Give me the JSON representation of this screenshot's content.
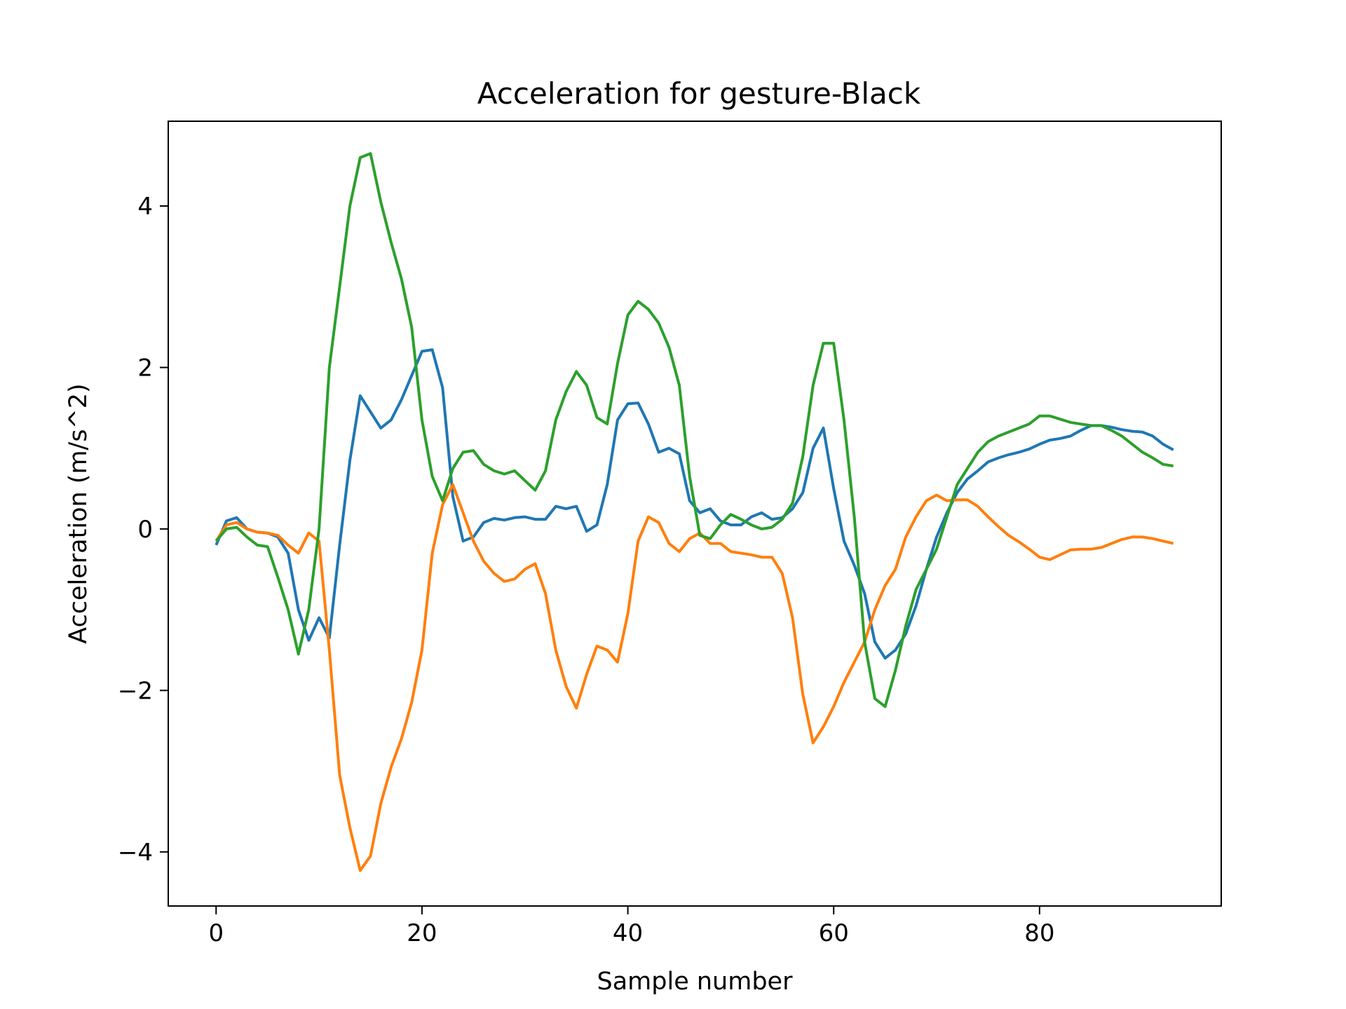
{
  "chart_data": {
    "type": "line",
    "title": "Acceleration for gesture-Black",
    "xlabel": "Sample number",
    "ylabel": "Acceleration (m/s^2)",
    "xlim": [
      -4.65,
      97.65
    ],
    "ylim": [
      -4.67,
      5.05
    ],
    "xticks": [
      0,
      20,
      40,
      60,
      80
    ],
    "xtick_labels": [
      "0",
      "20",
      "40",
      "60",
      "80"
    ],
    "yticks": [
      -4,
      -2,
      0,
      2,
      4
    ],
    "ytick_labels": [
      "−4",
      "−2",
      "0",
      "2",
      "4"
    ],
    "grid": false,
    "legend": "none",
    "x": [
      0,
      1,
      2,
      3,
      4,
      5,
      6,
      7,
      8,
      9,
      10,
      11,
      12,
      13,
      14,
      15,
      16,
      17,
      18,
      19,
      20,
      21,
      22,
      23,
      24,
      25,
      26,
      27,
      28,
      29,
      30,
      31,
      32,
      33,
      34,
      35,
      36,
      37,
      38,
      39,
      40,
      41,
      42,
      43,
      44,
      45,
      46,
      47,
      48,
      49,
      50,
      51,
      52,
      53,
      54,
      55,
      56,
      57,
      58,
      59,
      60,
      61,
      62,
      63,
      64,
      65,
      66,
      67,
      68,
      69,
      70,
      71,
      72,
      73,
      74,
      75,
      76,
      77,
      78,
      79,
      80,
      81,
      82,
      83,
      84,
      85,
      86,
      87,
      88,
      89,
      90,
      91,
      92,
      93
    ],
    "series": [
      {
        "color": "#1f77b4",
        "values": [
          -0.2,
          0.1,
          0.14,
          0.0,
          -0.04,
          -0.05,
          -0.1,
          -0.3,
          -1.0,
          -1.38,
          -1.1,
          -1.35,
          -0.2,
          0.85,
          1.65,
          1.45,
          1.25,
          1.35,
          1.6,
          1.9,
          2.2,
          2.22,
          1.75,
          0.4,
          -0.15,
          -0.1,
          0.08,
          0.13,
          0.11,
          0.14,
          0.15,
          0.12,
          0.12,
          0.28,
          0.25,
          0.28,
          -0.03,
          0.05,
          0.55,
          1.35,
          1.55,
          1.56,
          1.3,
          0.95,
          1.0,
          0.93,
          0.35,
          0.2,
          0.25,
          0.1,
          0.05,
          0.05,
          0.15,
          0.2,
          0.12,
          0.14,
          0.25,
          0.45,
          1.0,
          1.25,
          0.5,
          -0.15,
          -0.45,
          -0.8,
          -1.4,
          -1.6,
          -1.5,
          -1.3,
          -0.95,
          -0.5,
          -0.1,
          0.2,
          0.45,
          0.62,
          0.72,
          0.83,
          0.88,
          0.92,
          0.95,
          0.99,
          1.05,
          1.1,
          1.12,
          1.15,
          1.22,
          1.28,
          1.28,
          1.26,
          1.23,
          1.21,
          1.2,
          1.15,
          1.05,
          0.98
        ]
      },
      {
        "color": "#ff7f0e",
        "values": [
          -0.15,
          0.05,
          0.08,
          0.0,
          -0.04,
          -0.05,
          -0.08,
          -0.2,
          -0.3,
          -0.05,
          -0.15,
          -1.5,
          -3.05,
          -3.7,
          -4.23,
          -4.05,
          -3.4,
          -2.95,
          -2.6,
          -2.15,
          -1.5,
          -0.3,
          0.3,
          0.55,
          0.2,
          -0.15,
          -0.4,
          -0.55,
          -0.65,
          -0.62,
          -0.5,
          -0.43,
          -0.8,
          -1.5,
          -1.95,
          -2.22,
          -1.8,
          -1.45,
          -1.5,
          -1.65,
          -1.05,
          -0.15,
          0.15,
          0.08,
          -0.18,
          -0.28,
          -0.12,
          -0.05,
          -0.18,
          -0.18,
          -0.28,
          -0.3,
          -0.32,
          -0.35,
          -0.35,
          -0.55,
          -1.1,
          -2.05,
          -2.65,
          -2.45,
          -2.2,
          -1.9,
          -1.65,
          -1.4,
          -1.0,
          -0.7,
          -0.5,
          -0.1,
          0.15,
          0.35,
          0.42,
          0.35,
          0.36,
          0.36,
          0.28,
          0.15,
          0.03,
          -0.08,
          -0.16,
          -0.25,
          -0.35,
          -0.38,
          -0.32,
          -0.26,
          -0.25,
          -0.25,
          -0.23,
          -0.18,
          -0.13,
          -0.1,
          -0.1,
          -0.12,
          -0.15,
          -0.18
        ]
      },
      {
        "color": "#2ca02c",
        "values": [
          -0.15,
          0.0,
          0.02,
          -0.1,
          -0.2,
          -0.22,
          -0.6,
          -1.0,
          -1.55,
          -1.0,
          0.0,
          2.0,
          3.0,
          4.0,
          4.6,
          4.65,
          4.05,
          3.55,
          3.1,
          2.5,
          1.35,
          0.65,
          0.35,
          0.75,
          0.95,
          0.97,
          0.8,
          0.72,
          0.68,
          0.72,
          0.6,
          0.48,
          0.72,
          1.35,
          1.7,
          1.95,
          1.78,
          1.38,
          1.3,
          2.05,
          2.65,
          2.82,
          2.72,
          2.55,
          2.25,
          1.78,
          0.65,
          -0.08,
          -0.12,
          0.05,
          0.18,
          0.12,
          0.05,
          0.0,
          0.02,
          0.12,
          0.32,
          0.9,
          1.78,
          2.3,
          2.3,
          1.35,
          0.15,
          -1.4,
          -2.1,
          -2.2,
          -1.75,
          -1.2,
          -0.75,
          -0.5,
          -0.25,
          0.15,
          0.55,
          0.75,
          0.95,
          1.08,
          1.15,
          1.2,
          1.25,
          1.3,
          1.4,
          1.4,
          1.36,
          1.32,
          1.3,
          1.28,
          1.28,
          1.22,
          1.15,
          1.05,
          0.95,
          0.88,
          0.8,
          0.78
        ]
      }
    ]
  }
}
